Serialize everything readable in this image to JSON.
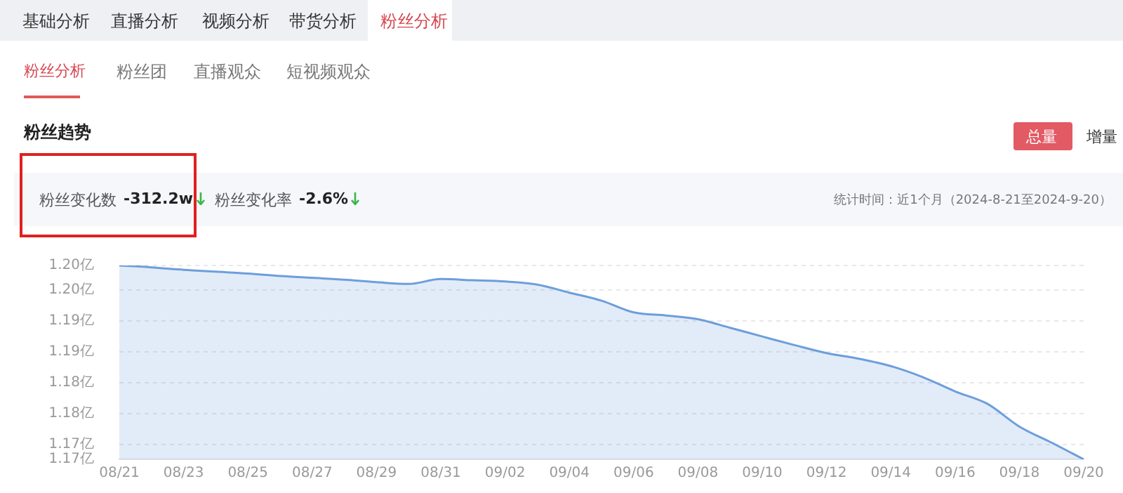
{
  "chart_data": {
    "type": "area",
    "title": "粉丝趋势",
    "annotations": [
      "基础分析",
      "直播分析",
      "视频分析",
      "带货分析",
      "粉丝分析",
      "粉丝分析",
      "粉丝团",
      "直播观众",
      "短视频观众",
      "总量",
      "增量",
      "粉丝变化数",
      "-312.2w",
      "粉丝变化率",
      "-2.6%",
      "统计时间：近1个月（2024-8-21至2024-9-20）"
    ],
    "categories": [
      "08/21",
      null,
      "08/23",
      null,
      "08/25",
      null,
      "08/27",
      null,
      "08/29",
      null,
      "08/31",
      null,
      "09/02",
      null,
      "09/04",
      null,
      "09/06",
      null,
      "09/08",
      null,
      "09/10",
      null,
      "09/12",
      null,
      "09/14",
      null,
      "09/16",
      null,
      "09/18",
      null,
      "09/20"
    ],
    "series": [
      {
        "color": "#6d9edb",
        "values": [
          1.199,
          1.1987,
          1.1983,
          1.198,
          1.1977,
          1.1973,
          1.197,
          1.1967,
          1.1963,
          1.196,
          1.1968,
          1.1966,
          1.1964,
          1.1959,
          1.1946,
          1.1933,
          1.1914,
          1.1909,
          1.1903,
          1.1889,
          1.1875,
          1.1861,
          1.1848,
          1.1839,
          1.1827,
          1.1809,
          1.1786,
          1.1766,
          1.1729,
          1.1703,
          1.1676
        ]
      }
    ],
    "ylim": [
      1.1676,
      1.199
    ],
    "yticks": [
      {
        "value": 1.1676,
        "label": "1.17亿"
      },
      {
        "value": 1.17,
        "label": "1.17亿"
      },
      {
        "value": 1.175,
        "label": "1.18亿"
      },
      {
        "value": 1.18,
        "label": "1.18亿"
      },
      {
        "value": 1.185,
        "label": "1.19亿"
      },
      {
        "value": 1.19,
        "label": "1.19亿"
      },
      {
        "value": 1.195,
        "label": "1.20亿"
      },
      {
        "value": 1.199,
        "label": "1.20亿"
      }
    ],
    "grid": "y",
    "legend": false,
    "marker": "none"
  }
}
